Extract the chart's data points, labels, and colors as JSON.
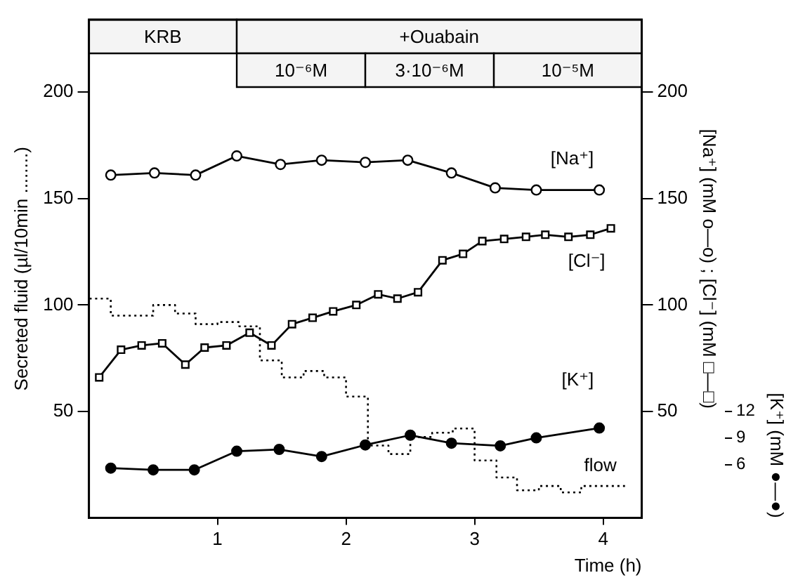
{
  "chart_data": {
    "type": "line",
    "xlabel": "Time (h)",
    "ylabel": "Secreted fluid (µl/10min ........)",
    "y2label": "[Na⁺] (mM o—o) ; [Cl⁻] (mM □—□)",
    "y3label": "[K⁺] (mM ●—●)",
    "xlim": [
      0,
      4.3
    ],
    "xticks": [
      1,
      2,
      3,
      4
    ],
    "ylim": [
      0,
      234
    ],
    "yticks": [
      50,
      100,
      150,
      200
    ],
    "y2lim": [
      0,
      234
    ],
    "y2ticks": [
      50,
      100,
      150,
      200
    ],
    "y3lim": [
      0,
      56
    ],
    "y3ticks": [
      6,
      9,
      12
    ],
    "grid": false,
    "legend": false,
    "bands": [
      {
        "axis": "x",
        "from": 0,
        "to": 1.15,
        "label": "KRB",
        "color": "#f4f4f4"
      },
      {
        "axis": "x",
        "from": 1.15,
        "to": 4.3,
        "label": "+Ouabain",
        "color": "#f4f4f4"
      },
      {
        "axis": "x",
        "from": 1.15,
        "to": 2.15,
        "label": "10⁻⁶M",
        "color": "#f4f4f4"
      },
      {
        "axis": "x",
        "from": 2.15,
        "to": 3.15,
        "label": "3·10⁻⁶M",
        "color": "#f4f4f4"
      },
      {
        "axis": "x",
        "from": 3.15,
        "to": 4.3,
        "label": "10⁻⁵M",
        "color": "#f4f4f4"
      }
    ],
    "series": [
      {
        "name": "[Na⁺]",
        "type": "line",
        "axis": "y2",
        "color": "#000000",
        "marker": "circle",
        "line_style": "solid",
        "x": [
          0.17,
          0.51,
          0.83,
          1.15,
          1.49,
          1.81,
          2.15,
          2.48,
          2.82,
          3.16,
          3.48,
          3.97
        ],
        "values": [
          161,
          162,
          161,
          170,
          166,
          168,
          167,
          168,
          162,
          155,
          154,
          154
        ]
      },
      {
        "name": "[Cl⁻]",
        "type": "line",
        "axis": "y2",
        "color": "#000000",
        "marker": "square",
        "line_style": "solid",
        "x": [
          0.08,
          0.25,
          0.41,
          0.57,
          0.75,
          0.9,
          1.07,
          1.25,
          1.42,
          1.58,
          1.74,
          1.9,
          2.08,
          2.25,
          2.4,
          2.56,
          2.75,
          2.91,
          3.06,
          3.23,
          3.4,
          3.55,
          3.73,
          3.9,
          4.06
        ],
        "values": [
          66,
          79,
          81,
          82,
          72,
          80,
          81,
          87,
          81,
          91,
          94,
          97,
          100,
          105,
          103,
          106,
          121,
          124,
          130,
          131,
          132,
          133,
          132,
          133,
          136
        ]
      },
      {
        "name": "[K⁺]",
        "type": "line",
        "axis": "y3",
        "color": "#000000",
        "marker": "circle",
        "line_style": "solid",
        "x": [
          0.17,
          0.5,
          0.82,
          1.15,
          1.48,
          1.81,
          2.15,
          2.5,
          2.82,
          3.2,
          3.48,
          3.97
        ],
        "values": [
          5.6,
          5.4,
          5.4,
          7.5,
          7.7,
          6.9,
          8.2,
          9.3,
          8.4,
          8.1,
          9,
          10.1
        ]
      },
      {
        "name": "flow",
        "type": "step",
        "axis": "y",
        "color": "#000000",
        "marker": "none",
        "line_style": "dotted",
        "x": [
          0,
          0.17,
          0.33,
          0.5,
          0.67,
          0.83,
          1,
          1.17,
          1.33,
          1.5,
          1.67,
          1.83,
          2,
          2.17,
          2.33,
          2.5,
          2.67,
          2.83,
          3,
          3.17,
          3.33,
          3.5,
          3.67,
          3.83,
          4,
          4.17
        ],
        "values": [
          98,
          103,
          95,
          95,
          100,
          96,
          91,
          92,
          90,
          74,
          66,
          69,
          66,
          57,
          34,
          30,
          38,
          40,
          42,
          27,
          19,
          13,
          15,
          12,
          15,
          15
        ]
      }
    ]
  }
}
